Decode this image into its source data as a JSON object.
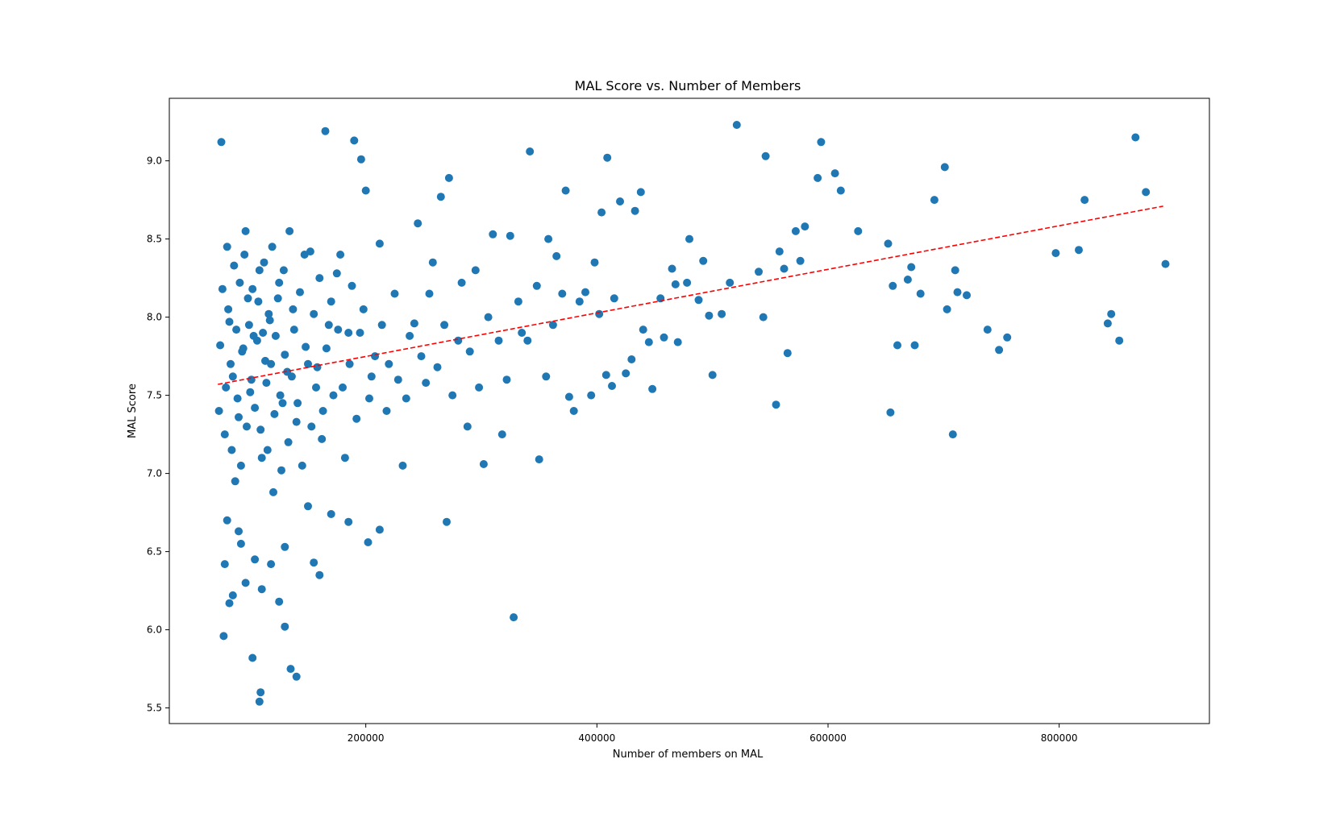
{
  "chart_data": {
    "type": "scatter",
    "title": "MAL Score vs. Number of Members",
    "xlabel": "Number of members on MAL",
    "ylabel": "MAL Score",
    "xlim": [
      30000,
      930000
    ],
    "ylim": [
      5.4,
      9.4
    ],
    "xticks": [
      200000,
      400000,
      600000,
      800000
    ],
    "xtick_labels": [
      "200000",
      "400000",
      "600000",
      "800000"
    ],
    "yticks": [
      5.5,
      6.0,
      6.5,
      7.0,
      7.5,
      8.0,
      8.5,
      9.0
    ],
    "ytick_labels": [
      "5.5",
      "6.0",
      "6.5",
      "7.0",
      "7.5",
      "8.0",
      "8.5",
      "9.0"
    ],
    "grid": false,
    "legend": "none",
    "colors": {
      "points": "#1f77b4",
      "trend": "#ff0000",
      "axes": "#000000"
    },
    "trendline": {
      "style": "dashed",
      "x": [
        72000,
        890000
      ],
      "y": [
        7.57,
        8.71
      ]
    },
    "series": [
      {
        "points": [
          [
            75000,
            9.12
          ],
          [
            80000,
            8.45
          ],
          [
            82000,
            7.97
          ],
          [
            85000,
            7.62
          ],
          [
            90000,
            7.36
          ],
          [
            87000,
            6.95
          ],
          [
            93000,
            7.78
          ],
          [
            98000,
            8.12
          ],
          [
            100000,
            7.52
          ],
          [
            103000,
            7.88
          ],
          [
            96000,
            8.55
          ],
          [
            108000,
            8.3
          ],
          [
            110000,
            7.1
          ],
          [
            113000,
            7.72
          ],
          [
            117000,
            7.98
          ],
          [
            120000,
            6.88
          ],
          [
            125000,
            8.22
          ],
          [
            128000,
            7.45
          ],
          [
            132000,
            7.65
          ],
          [
            137000,
            8.05
          ],
          [
            140000,
            7.33
          ],
          [
            148000,
            7.81
          ],
          [
            152000,
            8.42
          ],
          [
            158000,
            7.68
          ],
          [
            162000,
            7.22
          ],
          [
            165000,
            9.19
          ],
          [
            168000,
            7.95
          ],
          [
            175000,
            8.28
          ],
          [
            180000,
            7.55
          ],
          [
            185000,
            7.9
          ],
          [
            190000,
            9.13
          ],
          [
            196000,
            9.01
          ],
          [
            200000,
            8.81
          ],
          [
            205000,
            7.62
          ],
          [
            212000,
            8.47
          ],
          [
            218000,
            7.4
          ],
          [
            225000,
            8.15
          ],
          [
            232000,
            7.05
          ],
          [
            238000,
            7.88
          ],
          [
            245000,
            8.6
          ],
          [
            252000,
            7.58
          ],
          [
            258000,
            8.35
          ],
          [
            265000,
            8.77
          ],
          [
            272000,
            8.89
          ],
          [
            280000,
            7.85
          ],
          [
            288000,
            7.3
          ],
          [
            295000,
            8.3
          ],
          [
            302000,
            7.06
          ],
          [
            310000,
            8.53
          ],
          [
            318000,
            7.25
          ],
          [
            325000,
            8.52
          ],
          [
            328000,
            6.08
          ],
          [
            335000,
            7.9
          ],
          [
            342000,
            9.06
          ],
          [
            350000,
            7.09
          ],
          [
            358000,
            8.5
          ],
          [
            365000,
            8.39
          ],
          [
            373000,
            8.81
          ],
          [
            380000,
            7.4
          ],
          [
            390000,
            8.16
          ],
          [
            398000,
            8.35
          ],
          [
            404000,
            8.67
          ],
          [
            409000,
            9.02
          ],
          [
            413000,
            7.56
          ],
          [
            420000,
            8.74
          ],
          [
            433000,
            8.68
          ],
          [
            438000,
            8.8
          ],
          [
            445000,
            7.84
          ],
          [
            455000,
            8.12
          ],
          [
            465000,
            8.31
          ],
          [
            470000,
            7.84
          ],
          [
            480000,
            8.5
          ],
          [
            492000,
            8.36
          ],
          [
            500000,
            7.63
          ],
          [
            515000,
            8.22
          ],
          [
            521000,
            9.23
          ],
          [
            540000,
            8.29
          ],
          [
            546000,
            9.03
          ],
          [
            555000,
            7.44
          ],
          [
            565000,
            7.77
          ],
          [
            572000,
            8.55
          ],
          [
            580000,
            8.58
          ],
          [
            591000,
            8.89
          ],
          [
            594000,
            9.12
          ],
          [
            606000,
            8.92
          ],
          [
            611000,
            8.81
          ],
          [
            626000,
            8.55
          ],
          [
            652000,
            8.47
          ],
          [
            654000,
            7.39
          ],
          [
            660000,
            7.82
          ],
          [
            669000,
            8.24
          ],
          [
            675000,
            7.82
          ],
          [
            680000,
            8.15
          ],
          [
            692000,
            8.75
          ],
          [
            701000,
            8.96
          ],
          [
            703000,
            8.05
          ],
          [
            708000,
            7.25
          ],
          [
            710000,
            8.3
          ],
          [
            720000,
            8.14
          ],
          [
            738000,
            7.92
          ],
          [
            748000,
            7.79
          ],
          [
            755000,
            7.87
          ],
          [
            797000,
            8.41
          ],
          [
            817000,
            8.43
          ],
          [
            822000,
            8.75
          ],
          [
            842000,
            7.96
          ],
          [
            845000,
            8.02
          ],
          [
            852000,
            7.85
          ],
          [
            866000,
            9.15
          ],
          [
            875000,
            8.8
          ],
          [
            892000,
            8.34
          ],
          [
            78000,
            6.42
          ],
          [
            82000,
            6.17
          ],
          [
            85000,
            6.22
          ],
          [
            92000,
            6.55
          ],
          [
            96000,
            6.3
          ],
          [
            102000,
            5.82
          ],
          [
            108000,
            5.54
          ],
          [
            109000,
            5.6
          ],
          [
            110000,
            6.26
          ],
          [
            125000,
            6.18
          ],
          [
            130000,
            6.02
          ],
          [
            135000,
            5.75
          ],
          [
            140000,
            5.7
          ],
          [
            155000,
            6.43
          ],
          [
            160000,
            6.35
          ],
          [
            77000,
            5.96
          ],
          [
            80000,
            6.7
          ],
          [
            90000,
            6.63
          ],
          [
            104000,
            6.45
          ],
          [
            118000,
            6.42
          ],
          [
            130000,
            6.53
          ],
          [
            150000,
            6.79
          ],
          [
            170000,
            6.74
          ],
          [
            185000,
            6.69
          ],
          [
            202000,
            6.56
          ],
          [
            212000,
            6.64
          ],
          [
            270000,
            6.69
          ],
          [
            73000,
            7.4
          ],
          [
            74000,
            7.82
          ],
          [
            76000,
            8.18
          ],
          [
            78000,
            7.25
          ],
          [
            79000,
            7.55
          ],
          [
            81000,
            8.05
          ],
          [
            83000,
            7.7
          ],
          [
            84000,
            7.15
          ],
          [
            86000,
            8.33
          ],
          [
            88000,
            7.92
          ],
          [
            89000,
            7.48
          ],
          [
            91000,
            8.22
          ],
          [
            92000,
            7.05
          ],
          [
            94000,
            7.8
          ],
          [
            95000,
            8.4
          ],
          [
            97000,
            7.3
          ],
          [
            99000,
            7.95
          ],
          [
            101000,
            7.6
          ],
          [
            102000,
            8.18
          ],
          [
            104000,
            7.42
          ],
          [
            106000,
            7.85
          ],
          [
            107000,
            8.1
          ],
          [
            109000,
            7.28
          ],
          [
            111000,
            7.9
          ],
          [
            112000,
            8.35
          ],
          [
            114000,
            7.58
          ],
          [
            115000,
            7.15
          ],
          [
            116000,
            8.02
          ],
          [
            118000,
            7.7
          ],
          [
            119000,
            8.45
          ],
          [
            121000,
            7.38
          ],
          [
            122000,
            7.88
          ],
          [
            124000,
            8.12
          ],
          [
            126000,
            7.5
          ],
          [
            127000,
            7.02
          ],
          [
            129000,
            8.3
          ],
          [
            130000,
            7.76
          ],
          [
            133000,
            7.2
          ],
          [
            134000,
            8.55
          ],
          [
            136000,
            7.62
          ],
          [
            138000,
            7.92
          ],
          [
            141000,
            7.45
          ],
          [
            143000,
            8.16
          ],
          [
            145000,
            7.05
          ],
          [
            147000,
            8.4
          ],
          [
            150000,
            7.7
          ],
          [
            153000,
            7.3
          ],
          [
            155000,
            8.02
          ],
          [
            157000,
            7.55
          ],
          [
            160000,
            8.25
          ],
          [
            163000,
            7.4
          ],
          [
            166000,
            7.8
          ],
          [
            170000,
            8.1
          ],
          [
            172000,
            7.5
          ],
          [
            176000,
            7.92
          ],
          [
            178000,
            8.4
          ],
          [
            182000,
            7.1
          ],
          [
            186000,
            7.7
          ],
          [
            188000,
            8.2
          ],
          [
            192000,
            7.35
          ],
          [
            195000,
            7.9
          ],
          [
            198000,
            8.05
          ],
          [
            203000,
            7.48
          ],
          [
            208000,
            7.75
          ],
          [
            214000,
            7.95
          ],
          [
            220000,
            7.7
          ],
          [
            228000,
            7.6
          ],
          [
            235000,
            7.48
          ],
          [
            242000,
            7.96
          ],
          [
            248000,
            7.75
          ],
          [
            255000,
            8.15
          ],
          [
            262000,
            7.68
          ],
          [
            268000,
            7.95
          ],
          [
            275000,
            7.5
          ],
          [
            283000,
            8.22
          ],
          [
            290000,
            7.78
          ],
          [
            298000,
            7.55
          ],
          [
            306000,
            8.0
          ],
          [
            315000,
            7.85
          ],
          [
            322000,
            7.6
          ],
          [
            332000,
            8.1
          ],
          [
            340000,
            7.85
          ],
          [
            348000,
            8.2
          ],
          [
            356000,
            7.62
          ],
          [
            362000,
            7.95
          ],
          [
            370000,
            8.15
          ],
          [
            376000,
            7.49
          ],
          [
            385000,
            8.1
          ],
          [
            395000,
            7.5
          ],
          [
            402000,
            8.02
          ],
          [
            408000,
            7.63
          ],
          [
            415000,
            8.12
          ],
          [
            425000,
            7.64
          ],
          [
            430000,
            7.73
          ],
          [
            440000,
            7.92
          ],
          [
            448000,
            7.54
          ],
          [
            458000,
            7.87
          ],
          [
            468000,
            8.21
          ],
          [
            478000,
            8.22
          ],
          [
            488000,
            8.11
          ],
          [
            497000,
            8.01
          ],
          [
            508000,
            8.02
          ],
          [
            544000,
            8.0
          ],
          [
            558000,
            8.42
          ],
          [
            562000,
            8.31
          ],
          [
            576000,
            8.36
          ],
          [
            656000,
            8.2
          ],
          [
            672000,
            8.32
          ],
          [
            712000,
            8.16
          ]
        ]
      }
    ]
  }
}
